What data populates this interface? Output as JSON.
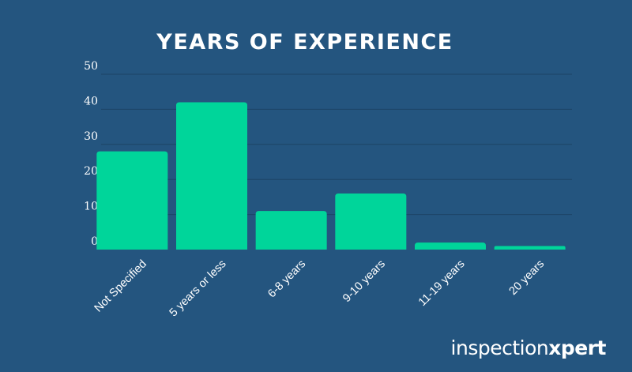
{
  "chart_data": {
    "type": "bar",
    "title": "YEARS OF EXPERIENCE",
    "xlabel": "",
    "ylabel": "",
    "categories": [
      "Not Specified",
      "5 years or less",
      "6-8 years",
      "9-10 years",
      "11-19 years",
      "20 years"
    ],
    "values": [
      28,
      42,
      11,
      16,
      2,
      1
    ],
    "ylim": [
      0,
      50
    ],
    "yticks": [
      0,
      10,
      20,
      30,
      40,
      50
    ],
    "grid": true,
    "legend": "none",
    "bar_color": "#00d59a",
    "background_color": "#24557f",
    "grid_color": "#1c4466"
  },
  "brand": {
    "light": "inspection",
    "bold": "xpert"
  }
}
